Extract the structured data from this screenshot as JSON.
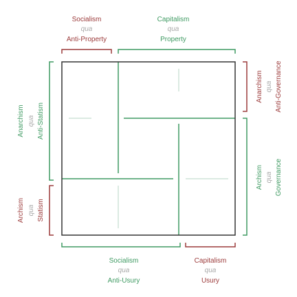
{
  "colors": {
    "red": "#9b3a3a",
    "green": "#3f9a62",
    "qua": "#a9a9a9",
    "frame": "#333333",
    "faint": "#cfe3d8"
  },
  "labels": {
    "top_left": {
      "term": "Socialism",
      "qua": "qua",
      "basis": "Anti-Property"
    },
    "top_right": {
      "term": "Capitalism",
      "qua": "qua",
      "basis": "Property"
    },
    "bottom_left": {
      "term": "Socialism",
      "qua": "qua",
      "basis": "Anti-Usury"
    },
    "bottom_right": {
      "term": "Capitalism",
      "qua": "qua",
      "basis": "Usury"
    },
    "left_upper": {
      "term": "Anarchism",
      "qua": "qua",
      "basis": "Anti-Statism"
    },
    "left_lower": {
      "term": "Archism",
      "qua": "qua",
      "basis": "Statism"
    },
    "right_upper": {
      "term": "Anarchism",
      "qua": "qua",
      "basis": "Anti-Governance"
    },
    "right_lower": {
      "term": "Archism",
      "qua": "qua",
      "basis": "Governance"
    }
  }
}
